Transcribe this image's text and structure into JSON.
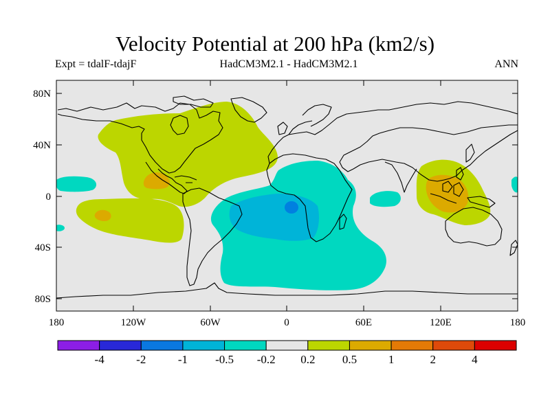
{
  "title": "Velocity Potential at 200 hPa (km2/s)",
  "subtitle": {
    "left": "Expt = tdalF-tdajF",
    "center": "HadCM3M2.1 - HadCM3M2.1",
    "right": "ANN"
  },
  "map": {
    "lat_labels": [
      "80N",
      "40N",
      "0",
      "40S",
      "80S"
    ],
    "lon_labels": [
      "180",
      "120W",
      "60W",
      "0",
      "60E",
      "120E",
      "180"
    ],
    "colors": {
      "background": "#e6e6e6",
      "pos_0_2": "#bcd600",
      "pos_0_5": "#dcaa00",
      "pos_1": "#e47a06",
      "neg_0_2": "#00d8c0",
      "neg_0_5": "#00b4d8",
      "neg_1": "#0080e0"
    }
  },
  "colorbar": {
    "labels": [
      "-4",
      "-2",
      "-1",
      "-0.5",
      "-0.2",
      "0.2",
      "0.5",
      "1",
      "2",
      "4"
    ],
    "colors": [
      "#8c1ee6",
      "#2828d8",
      "#0a78e0",
      "#00b4d8",
      "#00d8c0",
      "#e6e6e6",
      "#bcd600",
      "#dcaa00",
      "#e47a06",
      "#de4a0a",
      "#dc0000"
    ]
  }
}
